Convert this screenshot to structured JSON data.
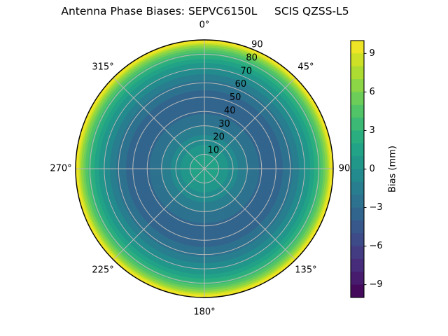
{
  "chart_data": {
    "type": "polar_contour",
    "title": "Antenna Phase Biases: SEPVC6150L     SCIS QZSS-L5",
    "colormap": "viridis",
    "grid": true,
    "theta_direction": "clockwise_from_north",
    "theta_ticks": [
      {
        "angle_deg": 0,
        "label": "0°"
      },
      {
        "angle_deg": 45,
        "label": "45°"
      },
      {
        "angle_deg": 90,
        "label": "90"
      },
      {
        "angle_deg": 135,
        "label": "135°"
      },
      {
        "angle_deg": 180,
        "label": "180°"
      },
      {
        "angle_deg": 225,
        "label": "225°"
      },
      {
        "angle_deg": 270,
        "label": "270°"
      },
      {
        "angle_deg": 315,
        "label": "315°"
      }
    ],
    "r_max": 90,
    "r_ticks": [
      {
        "r": 10,
        "label": "10"
      },
      {
        "r": 20,
        "label": "20"
      },
      {
        "r": 30,
        "label": "30"
      },
      {
        "r": 40,
        "label": "40"
      },
      {
        "r": 50,
        "label": "50"
      },
      {
        "r": 60,
        "label": "60"
      },
      {
        "r": 70,
        "label": "70"
      },
      {
        "r": 80,
        "label": "80"
      },
      {
        "r": 90,
        "label": "90"
      }
    ],
    "r_tick_label_angle_deg": 22.5,
    "radial_profile": {
      "azimuthally_symmetric": true,
      "r_deg": [
        0,
        10,
        20,
        30,
        40,
        45,
        50,
        55,
        60,
        65,
        70,
        75,
        80,
        85,
        88,
        90
      ],
      "bias_mm": [
        1.7,
        1.0,
        -0.5,
        -2.0,
        -3.2,
        -3.5,
        -3.45,
        -3.0,
        -2.3,
        -1.3,
        -0.1,
        1.3,
        3.3,
        6.2,
        9.0,
        10.0
      ]
    },
    "levels": {
      "vmin": -10,
      "vmax": 10,
      "step": 1
    },
    "colorbar": {
      "label": "Bias (mm)",
      "vmin": -10,
      "vmax": 10,
      "n_segments": 20,
      "ticks": [
        {
          "value": 9,
          "label": "9"
        },
        {
          "value": 6,
          "label": "6"
        },
        {
          "value": 3,
          "label": "3"
        },
        {
          "value": 0,
          "label": "0"
        },
        {
          "value": -3,
          "label": "−3"
        },
        {
          "value": -6,
          "label": "−6"
        },
        {
          "value": -9,
          "label": "−9"
        }
      ]
    },
    "colors": {
      "background": "#ffffff",
      "grid": "#b8b8b8",
      "spine": "#000000",
      "viridis_anchors": [
        "#440154",
        "#482475",
        "#414487",
        "#355f8d",
        "#2a788e",
        "#21918c",
        "#22a884",
        "#44bf70",
        "#7ad151",
        "#bddf26",
        "#fde725"
      ]
    }
  }
}
